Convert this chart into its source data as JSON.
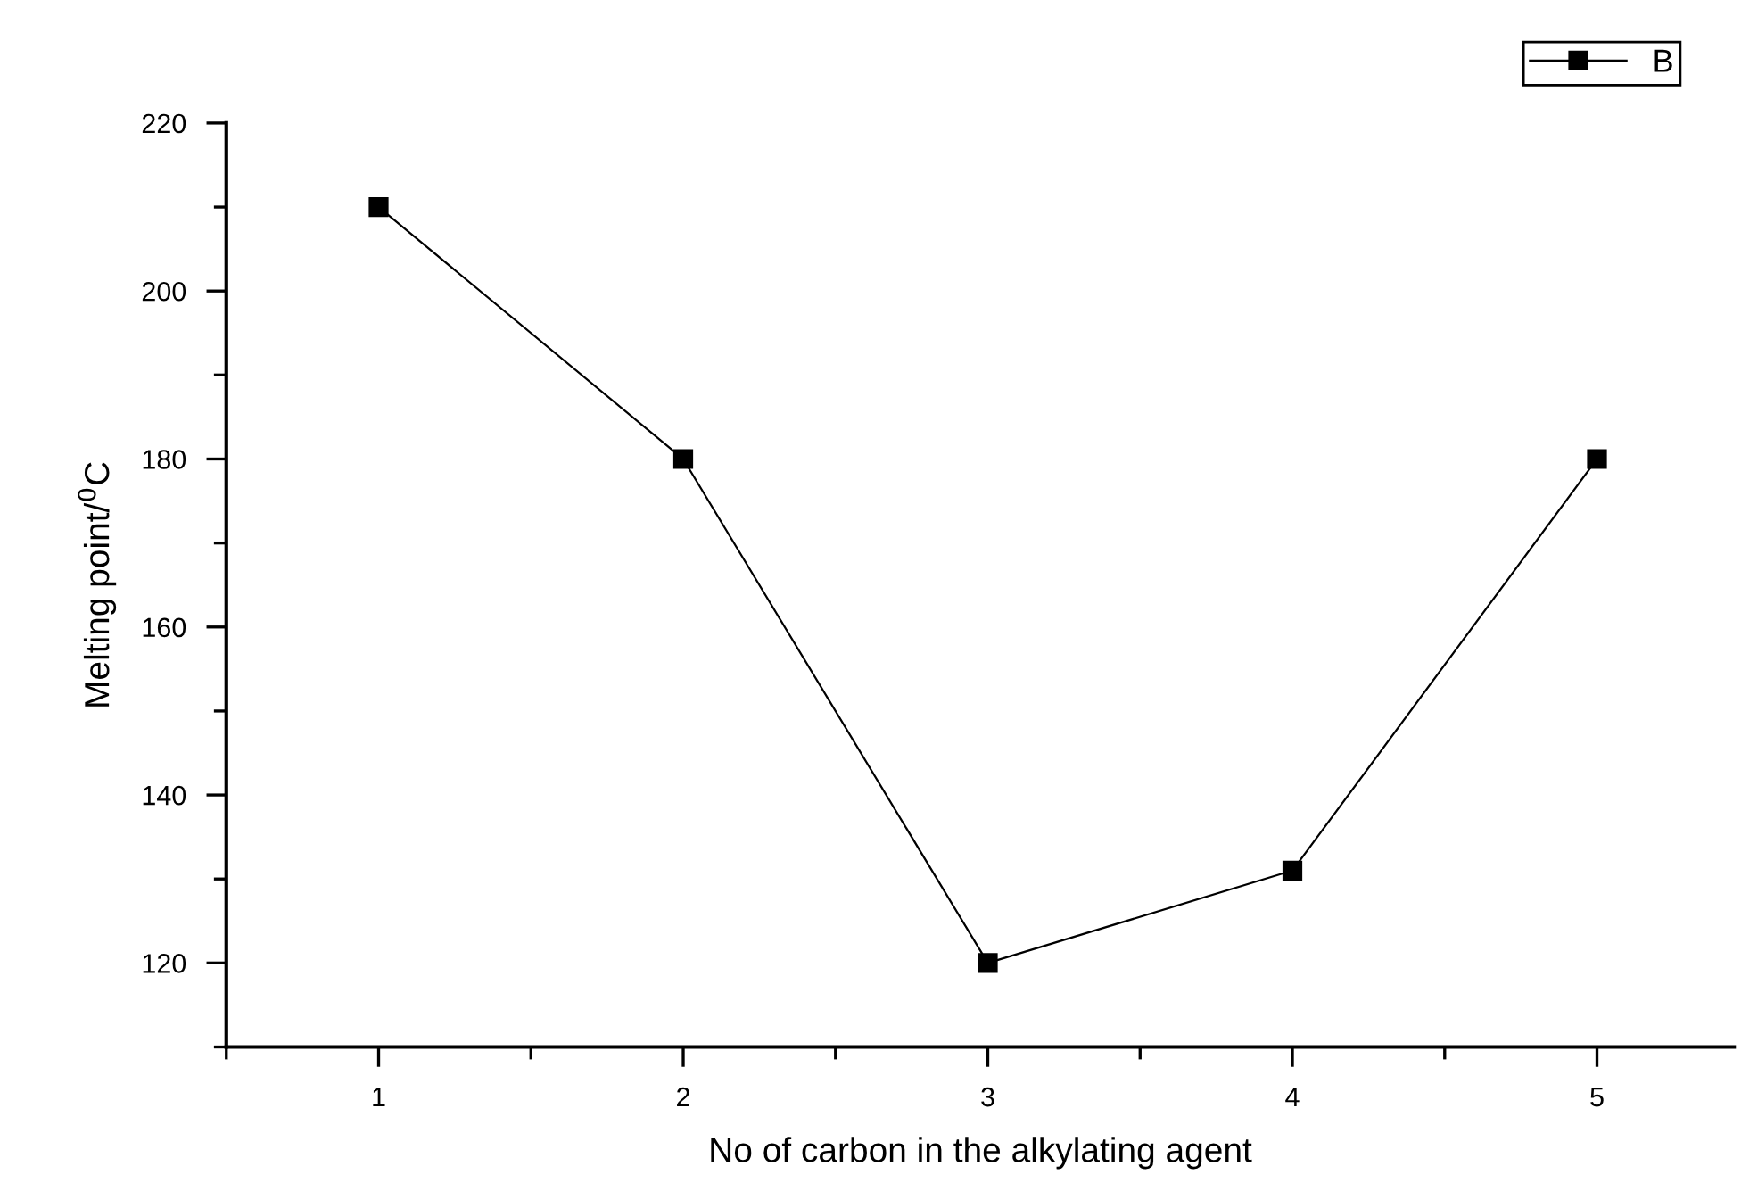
{
  "chart_data": {
    "type": "line",
    "xlabel": "No of carbon in the alkylating agent",
    "ylabel": "Melting point/$^{0}$C",
    "x": [
      1,
      2,
      3,
      4,
      5
    ],
    "series": [
      {
        "name": "B",
        "color": "#000000",
        "values": [
          210,
          180,
          120,
          131,
          180
        ]
      }
    ],
    "xlim": [
      0.5,
      5.45
    ],
    "xticks": [
      {
        "value": 0.5,
        "label": null
      },
      1,
      {
        "value": 1.5,
        "label": null
      },
      2,
      {
        "value": 2.5,
        "label": null
      },
      3,
      {
        "value": 3.5,
        "label": null
      },
      4,
      {
        "value": 4.5,
        "label": null
      },
      5
    ],
    "ylim": [
      110,
      220
    ],
    "yticks": [
      {
        "value": 110,
        "label": null
      },
      120,
      {
        "value": 130,
        "label": null
      },
      140,
      {
        "value": 150,
        "label": null
      },
      160,
      {
        "value": 170,
        "label": null
      },
      180,
      {
        "value": 190,
        "label": null
      },
      200,
      {
        "value": 210,
        "label": null
      },
      220
    ],
    "marker": "square",
    "line_style": "solid",
    "grid": false,
    "legend": "top right"
  }
}
